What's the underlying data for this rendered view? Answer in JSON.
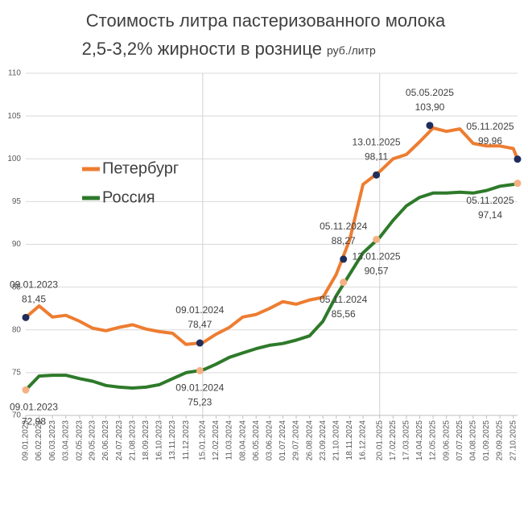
{
  "chart_data": {
    "type": "line",
    "title": "Стоимость литра пастеризованного молока",
    "subtitle": "2,5-3,2% жирности в  рознице",
    "units": "руб./литр",
    "x": [
      "09.01.2023",
      "06.02.2023",
      "06.03.2023",
      "03.04.2023",
      "02.05.2023",
      "29.05.2023",
      "26.06.2023",
      "24.07.2023",
      "21.08.2023",
      "18.09.2023",
      "16.10.2023",
      "13.11.2023",
      "11.12.2023",
      "15.01.2024",
      "12.02.2024",
      "11.03.2024",
      "08.04.2024",
      "06.05.2024",
      "03.06.2024",
      "01.07.2024",
      "29.07.2024",
      "26.08.2024",
      "23.09.2024",
      "21.10.2024",
      "18.11.2024",
      "16.12.2024",
      "20.01.2025",
      "17.02.2025",
      "17.03.2025",
      "14.04.2025",
      "12.05.2025",
      "09.06.2025",
      "07.07.2025",
      "04.08.2025",
      "01.09.2025",
      "29.09.2025",
      "27.10.2025",
      "05.11.2025"
    ],
    "xticks": [
      "09.01.2023",
      "06.02.2023",
      "06.03.2023",
      "03.04.2023",
      "02.05.2023",
      "29.05.2023",
      "26.06.2023",
      "24.07.2023",
      "21.08.2023",
      "18.09.2023",
      "16.10.2023",
      "13.11.2023",
      "11.12.2023",
      "15.01.2024",
      "12.02.2024",
      "11.03.2024",
      "08.04.2024",
      "06.05.2024",
      "03.06.2024",
      "01.07.2024",
      "29.07.2024",
      "26.08.2024",
      "23.09.2024",
      "21.10.2024",
      "18.11.2024",
      "16.12.2024",
      "20.01.2025",
      "17.02.2025",
      "17.03.2025",
      "14.04.2025",
      "12.05.2025",
      "09.06.2025",
      "07.07.2025",
      "04.08.2025",
      "01.09.2025",
      "29.09.2025",
      "27.10.2025"
    ],
    "xlim": [
      "09.01.2023",
      "05.11.2025"
    ],
    "series": [
      {
        "name": "Петербург",
        "color": "#ed7d31",
        "values": [
          81.45,
          82.8,
          81.5,
          81.7,
          81.0,
          80.2,
          79.9,
          80.3,
          80.6,
          80.1,
          79.8,
          79.6,
          78.3,
          78.5,
          79.5,
          80.3,
          81.5,
          81.8,
          82.5,
          83.3,
          83.0,
          83.5,
          83.8,
          86.5,
          90.5,
          97.0,
          98.5,
          100.0,
          100.5,
          102.0,
          103.6,
          103.2,
          103.5,
          101.8,
          101.5,
          101.5,
          101.2,
          99.96
        ]
      },
      {
        "name": "Россия",
        "color": "#2e7a2a",
        "values": [
          72.98,
          74.6,
          74.7,
          74.7,
          74.3,
          74.0,
          73.5,
          73.3,
          73.2,
          73.3,
          73.6,
          74.3,
          75.0,
          75.3,
          76.0,
          76.8,
          77.3,
          77.8,
          78.2,
          78.4,
          78.8,
          79.3,
          81.0,
          84.0,
          86.5,
          89.0,
          90.8,
          92.8,
          94.5,
          95.5,
          96.0,
          96.0,
          96.1,
          96.0,
          96.3,
          96.8,
          97.0,
          97.14
        ]
      }
    ],
    "annotations": [
      {
        "series": 0,
        "date": "09.01.2023",
        "value": 81.45,
        "value_label": "81,45",
        "color": "#1f2d5c"
      },
      {
        "series": 0,
        "date": "09.01.2024",
        "value": 78.47,
        "value_label": "78,47",
        "color": "#1f2d5c"
      },
      {
        "series": 0,
        "date": "05.11.2024",
        "value": 88.27,
        "value_label": "88,27",
        "color": "#1f2d5c"
      },
      {
        "series": 0,
        "date": "13.01.2025",
        "value": 98.11,
        "value_label": "98,11",
        "color": "#1f2d5c"
      },
      {
        "series": 0,
        "date": "05.05.2025",
        "value": 103.9,
        "value_label": "103,90",
        "color": "#1f2d5c"
      },
      {
        "series": 0,
        "date": "05.11.2025",
        "value": 99.96,
        "value_label": "99,96",
        "color": "#1f2d5c"
      },
      {
        "series": 1,
        "date": "09.01.2023",
        "value": 72.98,
        "value_label": "72,98",
        "color": "#f4b183"
      },
      {
        "series": 1,
        "date": "09.01.2024",
        "value": 75.23,
        "value_label": "75,23",
        "color": "#f4b183"
      },
      {
        "series": 1,
        "date": "05.11.2024",
        "value": 85.56,
        "value_label": "85,56",
        "color": "#f4b183"
      },
      {
        "series": 1,
        "date": "13.01.2025",
        "value": 90.57,
        "value_label": "90,57",
        "color": "#f4b183"
      },
      {
        "series": 1,
        "date": "05.11.2025",
        "value": 97.14,
        "value_label": "97,14",
        "color": "#f4b183"
      }
    ],
    "ylim": [
      70,
      110
    ],
    "yticks": [
      70,
      75,
      80,
      85,
      90,
      95,
      100,
      105,
      110
    ],
    "grid": true
  }
}
